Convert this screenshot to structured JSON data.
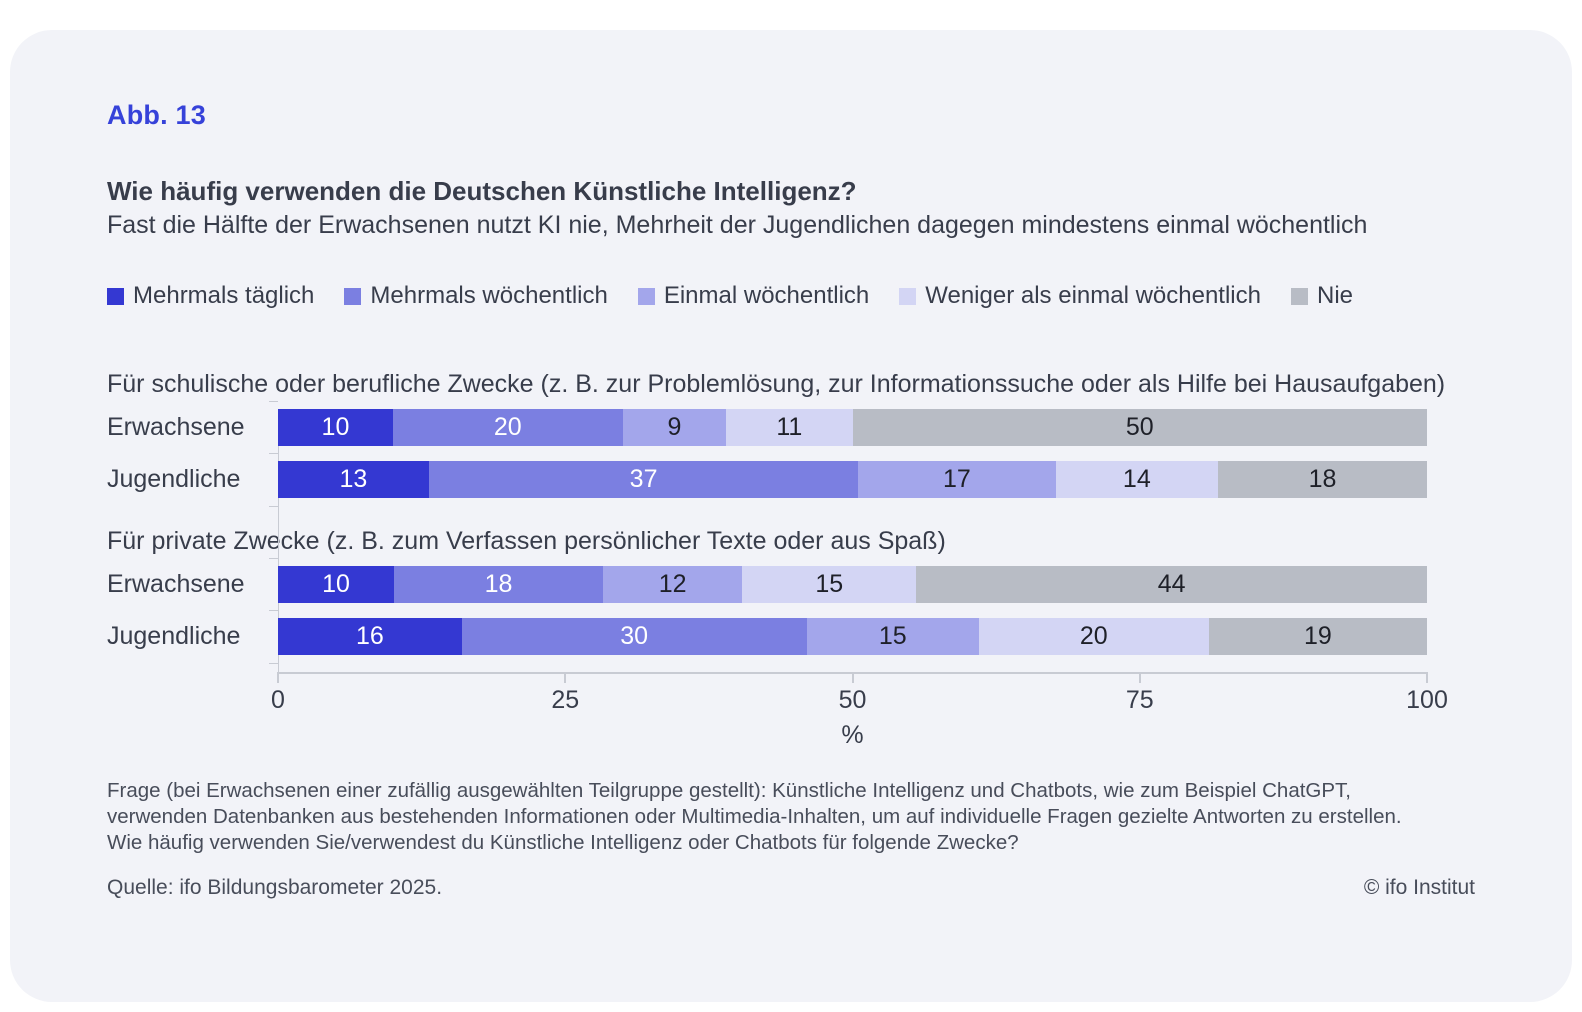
{
  "figure": {
    "label": "Abb. 13"
  },
  "header": {
    "title": "Wie häufig verwenden die Deutschen Künstliche Intelligenz?",
    "subtitle": "Fast die Hälfte der Erwachsenen nutzt KI nie, Mehrheit der Jugendlichen dagegen mindestens einmal wöchentlich"
  },
  "chart_data": {
    "type": "bar",
    "stacked": true,
    "orientation": "horizontal",
    "unit": "%",
    "series_names": [
      "Mehrmals täglich",
      "Mehrmals wöchentlich",
      "Einmal wöchentlich",
      "Weniger als einmal wöchentlich",
      "Nie"
    ],
    "series_colors": [
      "#3438d2",
      "#7b7fe1",
      "#a3a6eb",
      "#d3d5f4",
      "#b8bcc5"
    ],
    "value_text_colors": [
      "#ffffff",
      "#ffffff",
      "#1e2028",
      "#1e2028",
      "#1e2028"
    ],
    "groups": [
      {
        "title": "Für schulische oder berufliche Zwecke (z. B. zur Problemlösung, zur Informationssuche oder als Hilfe bei Hausaufgaben)",
        "rows": [
          {
            "label": "Erwachsene",
            "values": [
              10,
              20,
              9,
              11,
              50
            ]
          },
          {
            "label": "Jugendliche",
            "values": [
              13,
              37,
              17,
              14,
              18
            ]
          }
        ]
      },
      {
        "title": "Für private Zwecke (z. B. zum Verfassen persönlicher Texte oder aus Spaß)",
        "rows": [
          {
            "label": "Erwachsene",
            "values": [
              10,
              18,
              12,
              15,
              44
            ]
          },
          {
            "label": "Jugendliche",
            "values": [
              16,
              30,
              15,
              20,
              19
            ]
          }
        ]
      }
    ],
    "xaxis": {
      "range": [
        0,
        100
      ],
      "ticks": [
        0,
        25,
        50,
        75,
        100
      ],
      "label": "%"
    },
    "legend_position": "top",
    "grid": false
  },
  "footer": {
    "note": "Frage (bei Erwachsenen einer zufällig ausgewählten Teilgruppe gestellt): Künstliche Intelligenz und Chatbots, wie zum Beispiel ChatGPT, verwenden Datenbanken aus bestehenden Informationen oder Multimedia-Inhalten, um auf individuelle Fragen gezielte Antworten zu erstellen. Wie häufig verwenden Sie/verwendest du Künstliche Intelligenz oder Chatbots für folgende Zwecke?",
    "source": "Quelle: ifo Bildungsbarometer 2025.",
    "copyright": "© ifo Institut"
  }
}
